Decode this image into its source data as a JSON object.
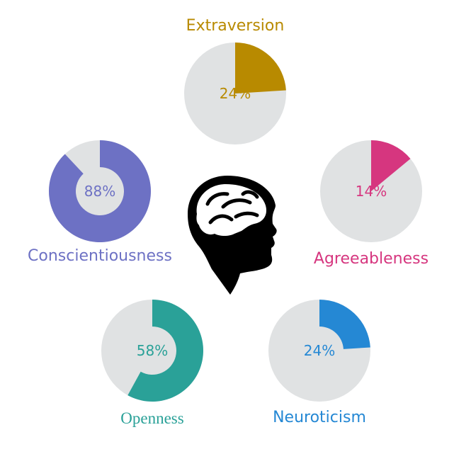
{
  "chart_data": {
    "type": "pie",
    "track_color": "#e0e2e3",
    "icon": "head-with-brain-icon",
    "charts": [
      {
        "key": "extraversion",
        "label": "Extraversion",
        "value": 24,
        "value_label": "24%",
        "color": "#b88a00",
        "style": "sector"
      },
      {
        "key": "agreeableness",
        "label": "Agreeableness",
        "value": 14,
        "value_label": "14%",
        "color": "#d6367f",
        "style": "sector"
      },
      {
        "key": "neuroticism",
        "label": "Neuroticism",
        "value": 24,
        "value_label": "24%",
        "color": "#2588d4",
        "style": "donut"
      },
      {
        "key": "openness",
        "label": "Openness",
        "value": 58,
        "value_label": "58%",
        "color": "#2aa198",
        "style": "donut"
      },
      {
        "key": "conscientiousness",
        "label": "Conscientiousness",
        "value": 88,
        "value_label": "88%",
        "color": "#6d71c4",
        "style": "donut"
      }
    ]
  }
}
